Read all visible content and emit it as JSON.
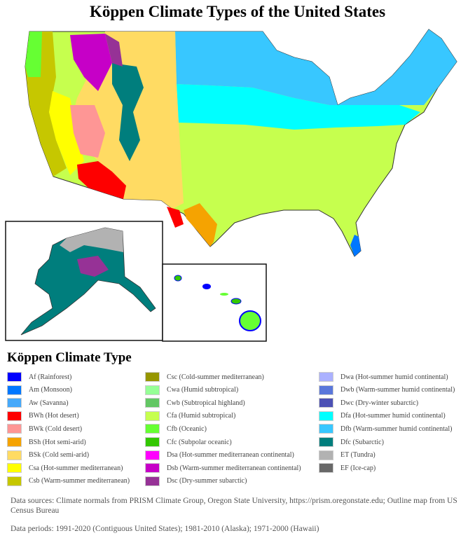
{
  "title": "Köppen Climate Types of the United States",
  "legend": {
    "title": "Köppen Climate Type",
    "items": [
      {
        "label": "Af (Rainforest)",
        "color": "#0000fe"
      },
      {
        "label": "Am (Monsoon)",
        "color": "#0077ff"
      },
      {
        "label": "Aw (Savanna)",
        "color": "#46a9fa"
      },
      {
        "label": "BWh (Hot desert)",
        "color": "#fe0000"
      },
      {
        "label": "BWk (Cold desert)",
        "color": "#fe9695"
      },
      {
        "label": "BSh (Hot semi-arid)",
        "color": "#f5a301"
      },
      {
        "label": "BSk (Cold semi-arid)",
        "color": "#ffdb63"
      },
      {
        "label": "Csa (Hot-summer mediterranean)",
        "color": "#ffff00"
      },
      {
        "label": "Csb (Warm-summer mediterranean)",
        "color": "#c6c700"
      },
      {
        "label": "Csc (Cold-summer mediterranean)",
        "color": "#969600"
      },
      {
        "label": "Cwa (Humid subtropical)",
        "color": "#96ff96"
      },
      {
        "label": "Cwb (Subtropical highland)",
        "color": "#63c764"
      },
      {
        "label": "Cfa (Humid subtropical)",
        "color": "#c6ff4e"
      },
      {
        "label": "Cfb (Oceanic)",
        "color": "#66ff33"
      },
      {
        "label": "Cfc (Subpolar oceanic)",
        "color": "#33c701"
      },
      {
        "label": "Dsa (Hot-summer mediterranean continental)",
        "color": "#ff00fe"
      },
      {
        "label": "Dsb (Warm-summer mediterranean continental)",
        "color": "#c600c7"
      },
      {
        "label": "Dsc (Dry-summer subarctic)",
        "color": "#963296"
      },
      {
        "label": "Dwa (Hot-summer humid continental)",
        "color": "#abb1ff"
      },
      {
        "label": "Dwb (Warm-summer humid continental)",
        "color": "#5a77db"
      },
      {
        "label": "Dwc (Dry-winter subarctic)",
        "color": "#4c51b5"
      },
      {
        "label": "Dfa (Hot-summer humid continental)",
        "color": "#00ffff"
      },
      {
        "label": "Dfb (Warm-summer humid continental)",
        "color": "#38c7ff"
      },
      {
        "label": "Dfc (Subarctic)",
        "color": "#007e7d"
      },
      {
        "label": "ET (Tundra)",
        "color": "#b2b2b2"
      },
      {
        "label": "EF (Ice-cap)",
        "color": "#686868"
      }
    ]
  },
  "sources": "Data sources: Climate normals from PRISM Climate Group, Oregon State University, https://prism.oregonstate.edu; Outline map from US Census Bureau",
  "periods": "Data periods: 1991-2020 (Contiguous United States); 1981-2010 (Alaska); 1971-2000 (Hawaii)"
}
